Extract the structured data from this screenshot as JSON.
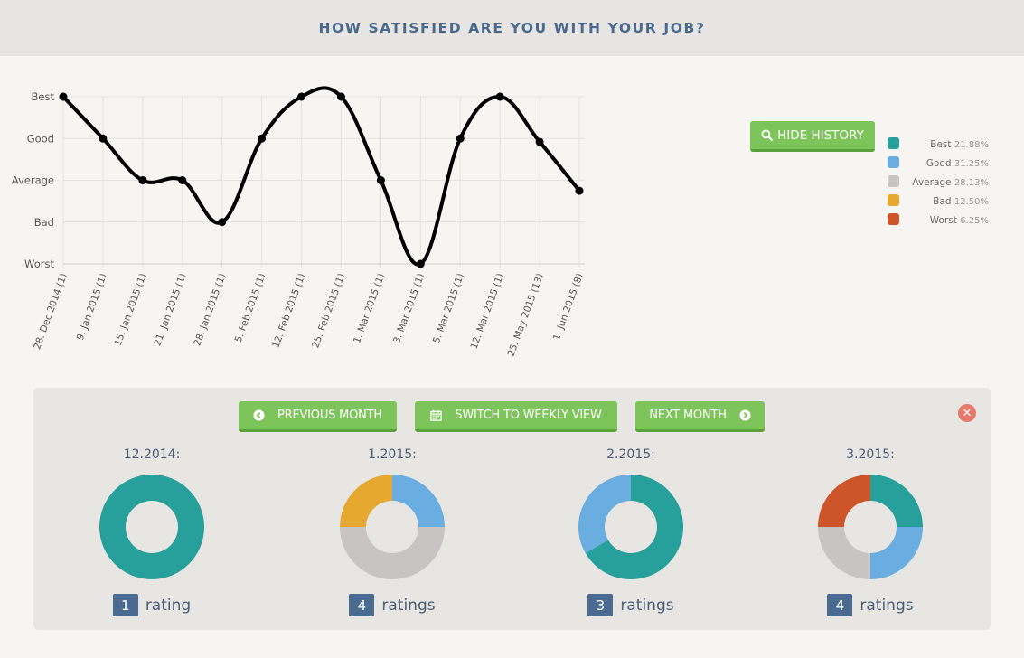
{
  "header": {
    "title": "HOW SATISFIED ARE YOU WITH YOUR JOB?"
  },
  "controls": {
    "hide_history_label": "HIDE HISTORY"
  },
  "colors": {
    "best": "#27a09b",
    "good": "#6aade0",
    "average": "#c9c4c4",
    "bad": "#e6a82f",
    "worst": "#cd5529",
    "button_green": "#7dc55a",
    "title_blue": "#4b6a8f"
  },
  "legend": [
    {
      "label": "Best",
      "pct": "21.88%",
      "color": "#27a09b"
    },
    {
      "label": "Good",
      "pct": "31.25%",
      "color": "#6aade0"
    },
    {
      "label": "Average",
      "pct": "28.13%",
      "color": "#c9c4c4"
    },
    {
      "label": "Bad",
      "pct": "12.50%",
      "color": "#e6a82f"
    },
    {
      "label": "Worst",
      "pct": "6.25%",
      "color": "#cd5529"
    }
  ],
  "chart_data": {
    "type": "line",
    "categories": [
      "28. Dec 2014 (1)",
      "9. Jan 2015 (1)",
      "15. Jan 2015 (1)",
      "21. Jan 2015 (1)",
      "28. Jan 2015 (1)",
      "5. Feb 2015 (1)",
      "12. Feb 2015 (1)",
      "25. Feb 2015 (1)",
      "1. Mar 2015 (1)",
      "3. Mar 2015 (1)",
      "5. Mar 2015 (1)",
      "12. Mar 2015 (1)",
      "25. May 2015 (13)",
      "1. Jun 2015 (8)"
    ],
    "y_levels": [
      "Worst",
      "Bad",
      "Average",
      "Good",
      "Best"
    ],
    "values": [
      5,
      4,
      3,
      3,
      2,
      4,
      5,
      5,
      3,
      1,
      4,
      5,
      3.92,
      2.75
    ],
    "ylim": [
      1,
      5
    ],
    "grid": true,
    "series": [
      {
        "values": [
          5,
          4,
          3,
          3,
          2,
          4,
          5,
          5,
          3,
          1,
          4,
          5,
          3.92,
          2.75
        ],
        "color": "#000000"
      }
    ]
  },
  "nav": {
    "previous_label": "PREVIOUS MONTH",
    "weekly_label": "SWITCH TO WEEKLY VIEW",
    "next_label": "NEXT MONTH"
  },
  "months": [
    {
      "label": "12.2014:",
      "count": "1",
      "word": "rating",
      "slices": [
        {
          "level": "best",
          "value": 1
        }
      ]
    },
    {
      "label": "1.2015:",
      "count": "4",
      "word": "ratings",
      "slices": [
        {
          "level": "good",
          "value": 1
        },
        {
          "level": "average",
          "value": 2
        },
        {
          "level": "bad",
          "value": 1
        }
      ]
    },
    {
      "label": "2.2015:",
      "count": "3",
      "word": "ratings",
      "slices": [
        {
          "level": "best",
          "value": 2
        },
        {
          "level": "good",
          "value": 1
        }
      ]
    },
    {
      "label": "3.2015:",
      "count": "4",
      "word": "ratings",
      "slices": [
        {
          "level": "best",
          "value": 1
        },
        {
          "level": "good",
          "value": 1
        },
        {
          "level": "average",
          "value": 1
        },
        {
          "level": "worst",
          "value": 1
        }
      ]
    }
  ]
}
